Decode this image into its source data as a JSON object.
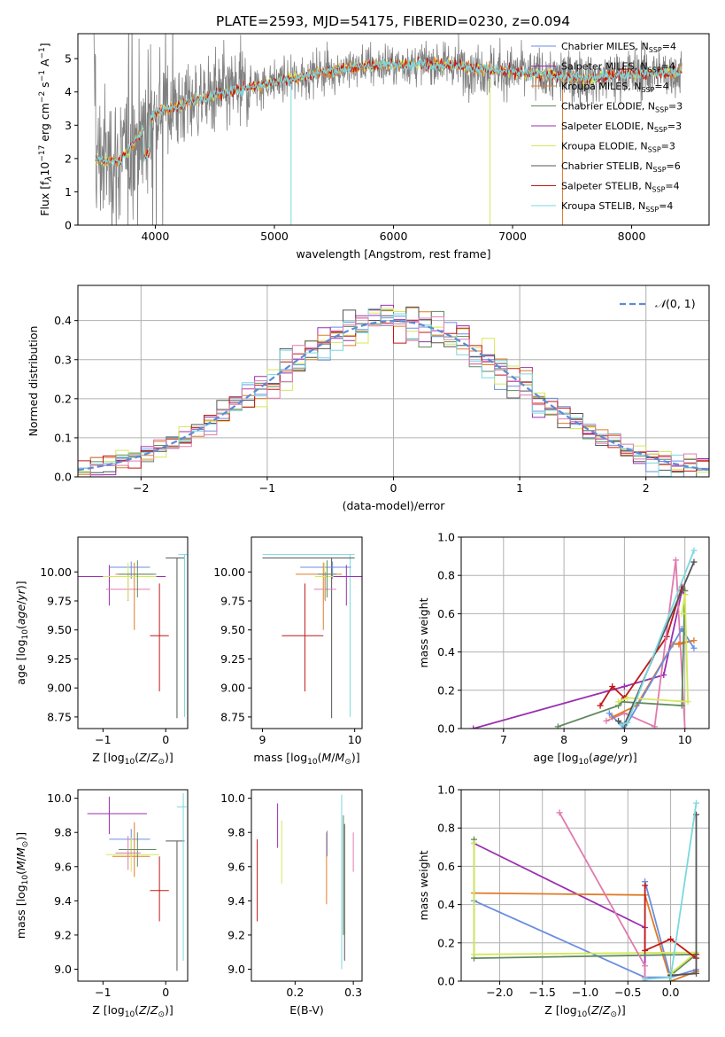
{
  "figure_title": "PLATE=2593, MJD=54175, FIBERID=0230, z=0.094",
  "colors": {
    "chabrier_miles": "#6a8ee0",
    "salpeter_miles": "#9b2fb0",
    "kroupa_miles": "#e07b28",
    "chabrier_elodie": "#5f8a5f",
    "salpeter_elodie": "#9b2fb0",
    "kroupa_elodie": "#d4e85a",
    "chabrier_stelib": "#555555",
    "salpeter_stelib": "#c01818",
    "kroupa_stelib": "#7ad8e0",
    "pink": "#e07ab0",
    "gauss": "#5b8bd6",
    "data": "#808080",
    "grid": "#b0b0b0"
  },
  "chart_data": [
    {
      "id": "spectrum",
      "type": "line",
      "xlabel": "wavelength [Angstrom, rest frame]",
      "ylabel": "Flux [f_λ 10^-17 erg cm^-2 s^-1 A^-1]",
      "xlim": [
        3350,
        8650
      ],
      "ylim": [
        0,
        5.75
      ],
      "xticks": [
        4000,
        5000,
        6000,
        7000,
        8000
      ],
      "yticks": [
        0,
        1,
        2,
        3,
        4,
        5
      ],
      "legend": "top-right",
      "series": [
        {
          "name": "Chabrier MILES, N_SSP=4",
          "color": "#6a8ee0"
        },
        {
          "name": "Salpeter MILES, N_SSP=4",
          "color": "#9b2fb0"
        },
        {
          "name": "Kroupa MILES, N_SSP=4",
          "color": "#e07b28"
        },
        {
          "name": "Chabrier ELODIE, N_SSP=3",
          "color": "#5f8a5f"
        },
        {
          "name": "Salpeter ELODIE, N_SSP=3",
          "color": "#9b2fb0"
        },
        {
          "name": "Kroupa ELODIE, N_SSP=3",
          "color": "#d4e85a"
        },
        {
          "name": "Chabrier STELIB, N_SSP=6",
          "color": "#555555"
        },
        {
          "name": "Salpeter STELIB, N_SSP=4",
          "color": "#c01818"
        },
        {
          "name": "Kroupa STELIB, N_SSP=4",
          "color": "#7ad8e0"
        }
      ],
      "model_continuum": {
        "x": [
          3500,
          3700,
          3850,
          4000,
          4300,
          4600,
          5000,
          5400,
          5800,
          6200,
          6500,
          6700,
          7000,
          7300,
          7600,
          8000,
          8400
        ],
        "y": [
          2.0,
          1.9,
          2.6,
          3.4,
          3.7,
          4.0,
          4.3,
          4.6,
          4.8,
          4.85,
          4.8,
          4.7,
          4.6,
          4.5,
          4.4,
          4.55,
          4.6
        ]
      }
    },
    {
      "id": "residuals",
      "type": "histogram",
      "xlabel": "(data-model)/error",
      "ylabel": "Normed distribution",
      "xlim": [
        -2.5,
        2.5
      ],
      "ylim": [
        0,
        0.49
      ],
      "xticks": [
        -2,
        -1,
        0,
        1,
        2
      ],
      "yticks": [
        0.0,
        0.1,
        0.2,
        0.3,
        0.4
      ],
      "legend_label": "N(0,1)",
      "grid": true
    },
    {
      "id": "age_vs_Z",
      "type": "scatter",
      "xlabel": "Z [log10(Z/Z⊙)]",
      "ylabel": "age [log10(age/yr)]",
      "xlim": [
        -1.4,
        0.35
      ],
      "ylim": [
        8.65,
        10.3
      ],
      "xticks": [
        -1,
        0
      ],
      "yticks": [
        8.75,
        9.0,
        9.25,
        9.5,
        9.75,
        10.0
      ],
      "points": [
        {
          "c": "salpeter_miles",
          "x": -0.9,
          "y": 9.96,
          "xerr": [
            0.55,
            0.9
          ],
          "yerr": [
            0.25,
            0.1
          ]
        },
        {
          "c": "chabrier_miles",
          "x": -0.55,
          "y": 10.04,
          "xerr": [
            0.35,
            0.3
          ],
          "yerr": [
            0.1,
            0.05
          ]
        },
        {
          "c": "pink",
          "x": -0.6,
          "y": 9.85,
          "xerr": [
            0.35,
            0.35
          ],
          "yerr": [
            0.1,
            0.15
          ]
        },
        {
          "c": "kroupa_miles",
          "x": -0.5,
          "y": 9.98,
          "xerr": [
            0.3,
            0.3
          ],
          "yerr": [
            0.48,
            0.1
          ]
        },
        {
          "c": "kroupa_elodie",
          "x": -0.6,
          "y": 9.96,
          "xerr": [
            0.4,
            0.45
          ],
          "yerr": [
            0.2,
            0.12
          ]
        },
        {
          "c": "chabrier_elodie",
          "x": -0.45,
          "y": 9.98,
          "xerr": [
            0.3,
            0.3
          ],
          "yerr": [
            0.2,
            0.12
          ]
        },
        {
          "c": "salpeter_stelib",
          "x": -0.1,
          "y": 9.45,
          "xerr": [
            0.15,
            0.15
          ],
          "yerr": [
            0.48,
            0.45
          ]
        },
        {
          "c": "chabrier_stelib",
          "x": 0.18,
          "y": 10.12,
          "xerr": [
            0.18,
            0.12
          ],
          "yerr": [
            1.38,
            0.0
          ]
        },
        {
          "c": "kroupa_stelib",
          "x": 0.3,
          "y": 10.15,
          "xerr": [
            0.1,
            0.05
          ],
          "yerr": [
            1.4,
            0.0
          ]
        }
      ]
    },
    {
      "id": "age_vs_mass",
      "type": "scatter",
      "xlabel": "mass [log10(M/M⊙)]",
      "ylabel": "",
      "xlim": [
        8.88,
        10.08
      ],
      "ylim": [
        8.65,
        10.3
      ],
      "xticks": [
        9,
        10
      ],
      "yticks": [
        8.75,
        9.0,
        9.25,
        9.5,
        9.75,
        10.0
      ],
      "points": [
        {
          "c": "kroupa_stelib",
          "x": 9.95,
          "y": 10.15,
          "xerr": [
            0.95,
            0.05
          ],
          "yerr": [
            1.4,
            0.0
          ]
        },
        {
          "c": "chabrier_stelib",
          "x": 9.75,
          "y": 10.12,
          "xerr": [
            0.75,
            0.25
          ],
          "yerr": [
            1.38,
            0.0
          ]
        },
        {
          "c": "chabrier_miles",
          "x": 9.76,
          "y": 10.04,
          "xerr": [
            0.35,
            0.2
          ],
          "yerr": [
            0.1,
            0.05
          ]
        },
        {
          "c": "kroupa_miles",
          "x": 9.66,
          "y": 9.98,
          "xerr": [
            0.3,
            0.2
          ],
          "yerr": [
            0.48,
            0.1
          ]
        },
        {
          "c": "salpeter_miles",
          "x": 9.91,
          "y": 9.96,
          "xerr": [
            0.3,
            0.2
          ],
          "yerr": [
            0.25,
            0.1
          ]
        },
        {
          "c": "pink",
          "x": 9.68,
          "y": 9.85,
          "xerr": [
            0.12,
            0.12
          ],
          "yerr": [
            0.1,
            0.15
          ]
        },
        {
          "c": "kroupa_elodie",
          "x": 9.67,
          "y": 9.96,
          "xerr": [
            0.1,
            0.1
          ],
          "yerr": [
            0.2,
            0.12
          ]
        },
        {
          "c": "chabrier_elodie",
          "x": 9.7,
          "y": 9.98,
          "xerr": [
            0.1,
            0.1
          ],
          "yerr": [
            0.2,
            0.12
          ]
        },
        {
          "c": "salpeter_stelib",
          "x": 9.46,
          "y": 9.45,
          "xerr": [
            0.25,
            0.2
          ],
          "yerr": [
            0.48,
            0.45
          ]
        }
      ]
    },
    {
      "id": "weight_vs_age",
      "type": "line",
      "xlabel": "age [log10(age/yr)]",
      "ylabel": "mass weight",
      "xlim": [
        6.3,
        10.4
      ],
      "ylim": [
        0,
        1.0
      ],
      "xticks": [
        7,
        8,
        9,
        10
      ],
      "yticks": [
        0.0,
        0.2,
        0.4,
        0.6,
        0.8,
        1.0
      ],
      "grid": true,
      "series": [
        {
          "c": "salpeter_miles",
          "x": [
            6.5,
            9.0,
            9.65,
            9.95,
            10.0
          ],
          "y": [
            0.0,
            0.22,
            0.28,
            0.72,
            0.7
          ]
        },
        {
          "c": "salpeter_stelib",
          "x": [
            8.6,
            8.8,
            9.0,
            9.7,
            9.95,
            10.0
          ],
          "y": [
            0.12,
            0.22,
            0.16,
            0.48,
            0.74,
            0.72
          ]
        },
        {
          "c": "pink",
          "x": [
            8.7,
            9.0,
            9.5,
            9.85,
            10.0
          ],
          "y": [
            0.04,
            0.08,
            0.01,
            0.88,
            0.0
          ]
        },
        {
          "c": "kroupa_miles",
          "x": [
            8.8,
            9.2,
            9.8,
            10.15,
            9.9
          ],
          "y": [
            0.06,
            0.12,
            0.44,
            0.46,
            0.44
          ]
        },
        {
          "c": "chabrier_miles",
          "x": [
            8.75,
            9.0,
            9.95,
            10.15
          ],
          "y": [
            0.08,
            0.0,
            0.52,
            0.42
          ]
        },
        {
          "c": "chabrier_elodie",
          "x": [
            7.9,
            8.9,
            8.95,
            9.95,
            10.0
          ],
          "y": [
            0.01,
            0.12,
            0.14,
            0.12,
            0.72
          ]
        },
        {
          "c": "kroupa_elodie",
          "x": [
            8.9,
            9.05,
            10.05,
            10.0,
            9.95
          ],
          "y": [
            0.14,
            0.16,
            0.14,
            0.7,
            0.6
          ]
        },
        {
          "c": "chabrier_stelib",
          "x": [
            8.9,
            9.0,
            10.15
          ],
          "y": [
            0.04,
            0.02,
            0.87
          ]
        },
        {
          "c": "kroupa_stelib",
          "x": [
            8.95,
            9.05,
            10.15
          ],
          "y": [
            0.02,
            0.03,
            0.93
          ]
        }
      ]
    },
    {
      "id": "mass_vs_Z",
      "type": "scatter",
      "xlabel": "Z [log10(Z/Z⊙)]",
      "ylabel": "mass [log10(M/M⊙)]",
      "xlim": [
        -1.4,
        0.35
      ],
      "ylim": [
        8.93,
        10.05
      ],
      "xticks": [
        -1,
        0
      ],
      "yticks": [
        9.0,
        9.2,
        9.4,
        9.6,
        9.8,
        10.0
      ],
      "points": [
        {
          "c": "salpeter_miles",
          "x": -0.9,
          "y": 9.91,
          "xerr": [
            0.35,
            0.6
          ],
          "yerr": [
            0.12,
            0.1
          ]
        },
        {
          "c": "chabrier_miles",
          "x": -0.55,
          "y": 9.76,
          "xerr": [
            0.35,
            0.3
          ],
          "yerr": [
            0.1,
            0.06
          ]
        },
        {
          "c": "kroupa_miles",
          "x": -0.5,
          "y": 9.66,
          "xerr": [
            0.35,
            0.25
          ],
          "yerr": [
            0.12,
            0.2
          ]
        },
        {
          "c": "kroupa_elodie",
          "x": -0.55,
          "y": 9.67,
          "xerr": [
            0.4,
            0.45
          ],
          "yerr": [
            0.1,
            0.1
          ]
        },
        {
          "c": "chabrier_elodie",
          "x": -0.45,
          "y": 9.7,
          "xerr": [
            0.3,
            0.3
          ],
          "yerr": [
            0.1,
            0.1
          ]
        },
        {
          "c": "pink",
          "x": -0.6,
          "y": 9.68,
          "xerr": [
            0.2,
            0.2
          ],
          "yerr": [
            0.1,
            0.1
          ]
        },
        {
          "c": "salpeter_stelib",
          "x": -0.1,
          "y": 9.46,
          "xerr": [
            0.15,
            0.15
          ],
          "yerr": [
            0.18,
            0.2
          ]
        },
        {
          "c": "chabrier_stelib",
          "x": 0.18,
          "y": 9.75,
          "xerr": [
            0.18,
            0.12
          ],
          "yerr": [
            0.76,
            0.0
          ]
        },
        {
          "c": "kroupa_stelib",
          "x": 0.28,
          "y": 9.95,
          "xerr": [
            0.1,
            0.05
          ],
          "yerr": [
            0.9,
            0.08
          ]
        }
      ]
    },
    {
      "id": "mass_vs_ebv",
      "type": "scatter",
      "xlabel": "E(B-V)",
      "ylabel": "",
      "xlim": [
        0.125,
        0.315
      ],
      "ylim": [
        8.93,
        10.05
      ],
      "xticks": [
        0.2,
        0.3
      ],
      "yticks": [
        9.0,
        9.2,
        9.4,
        9.6,
        9.8,
        10.0
      ],
      "points": [
        {
          "c": "salpeter_stelib",
          "x": 0.135,
          "y": 9.46,
          "xerr": [
            0,
            0
          ],
          "yerr": [
            0.18,
            0.3
          ]
        },
        {
          "c": "salpeter_miles",
          "x": 0.17,
          "y": 9.91,
          "xerr": [
            0,
            0
          ],
          "yerr": [
            0.2,
            0.06
          ]
        },
        {
          "c": "kroupa_elodie",
          "x": 0.177,
          "y": 9.7,
          "xerr": [
            0,
            0
          ],
          "yerr": [
            0.2,
            0.17
          ]
        },
        {
          "c": "kroupa_miles",
          "x": 0.254,
          "y": 9.6,
          "xerr": [
            0,
            0
          ],
          "yerr": [
            0.22,
            0.2
          ]
        },
        {
          "c": "chabrier_miles",
          "x": 0.255,
          "y": 9.76,
          "xerr": [
            0,
            0
          ],
          "yerr": [
            0.1,
            0.05
          ]
        },
        {
          "c": "kroupa_stelib",
          "x": 0.28,
          "y": 9.95,
          "xerr": [
            0,
            0
          ],
          "yerr": [
            0.95,
            0.07
          ]
        },
        {
          "c": "chabrier_stelib",
          "x": 0.285,
          "y": 9.75,
          "xerr": [
            0,
            0
          ],
          "yerr": [
            0.7,
            0.1
          ]
        },
        {
          "c": "chabrier_elodie",
          "x": 0.283,
          "y": 9.7,
          "xerr": [
            0,
            0
          ],
          "yerr": [
            0.5,
            0.2
          ]
        },
        {
          "c": "pink",
          "x": 0.3,
          "y": 9.7,
          "xerr": [
            0,
            0
          ],
          "yerr": [
            0.13,
            0.1
          ]
        }
      ]
    },
    {
      "id": "weight_vs_Z",
      "type": "line",
      "xlabel": "Z [log10(Z/Z⊙)]",
      "ylabel": "mass weight",
      "xlim": [
        -2.45,
        0.45
      ],
      "ylim": [
        0,
        1.0
      ],
      "xticks": [
        -2.0,
        -1.5,
        -1.0,
        -0.5,
        0.0
      ],
      "yticks": [
        0.0,
        0.2,
        0.4,
        0.6,
        0.8,
        1.0
      ],
      "grid": true,
      "series": [
        {
          "c": "salpeter_miles",
          "x": [
            -2.3,
            -0.3,
            -0.3
          ],
          "y": [
            0.72,
            0.28,
            0.0
          ]
        },
        {
          "c": "kroupa_miles",
          "x": [
            -2.3,
            -0.3,
            0.0,
            0.3
          ],
          "y": [
            0.46,
            0.45,
            0.0,
            0.05
          ]
        },
        {
          "c": "chabrier_miles",
          "x": [
            -2.3,
            -0.3,
            0.0,
            0.3,
            0.0,
            -0.3
          ],
          "y": [
            0.42,
            0.02,
            0.02,
            0.06,
            0.02,
            0.52
          ]
        },
        {
          "c": "chabrier_elodie",
          "x": [
            -2.3,
            -2.3,
            0.3,
            0.0
          ],
          "y": [
            0.74,
            0.12,
            0.14,
            0.03
          ]
        },
        {
          "c": "kroupa_elodie",
          "x": [
            -2.3,
            -2.3,
            0.3,
            0.0
          ],
          "y": [
            0.72,
            0.14,
            0.15,
            0.04
          ]
        },
        {
          "c": "salpeter_stelib",
          "x": [
            -0.3,
            -0.3,
            0.0,
            0.3,
            0.3
          ],
          "y": [
            0.5,
            0.16,
            0.22,
            0.12,
            0.14
          ]
        },
        {
          "c": "pink",
          "x": [
            -1.3,
            -0.3,
            -0.3
          ],
          "y": [
            0.88,
            0.08,
            0.02
          ]
        },
        {
          "c": "chabrier_stelib",
          "x": [
            0.3,
            0.3,
            0.0
          ],
          "y": [
            0.87,
            0.04,
            0.03
          ]
        },
        {
          "c": "kroupa_stelib",
          "x": [
            0.3,
            0.0,
            -0.3
          ],
          "y": [
            0.93,
            0.02,
            0.01
          ]
        }
      ]
    }
  ]
}
